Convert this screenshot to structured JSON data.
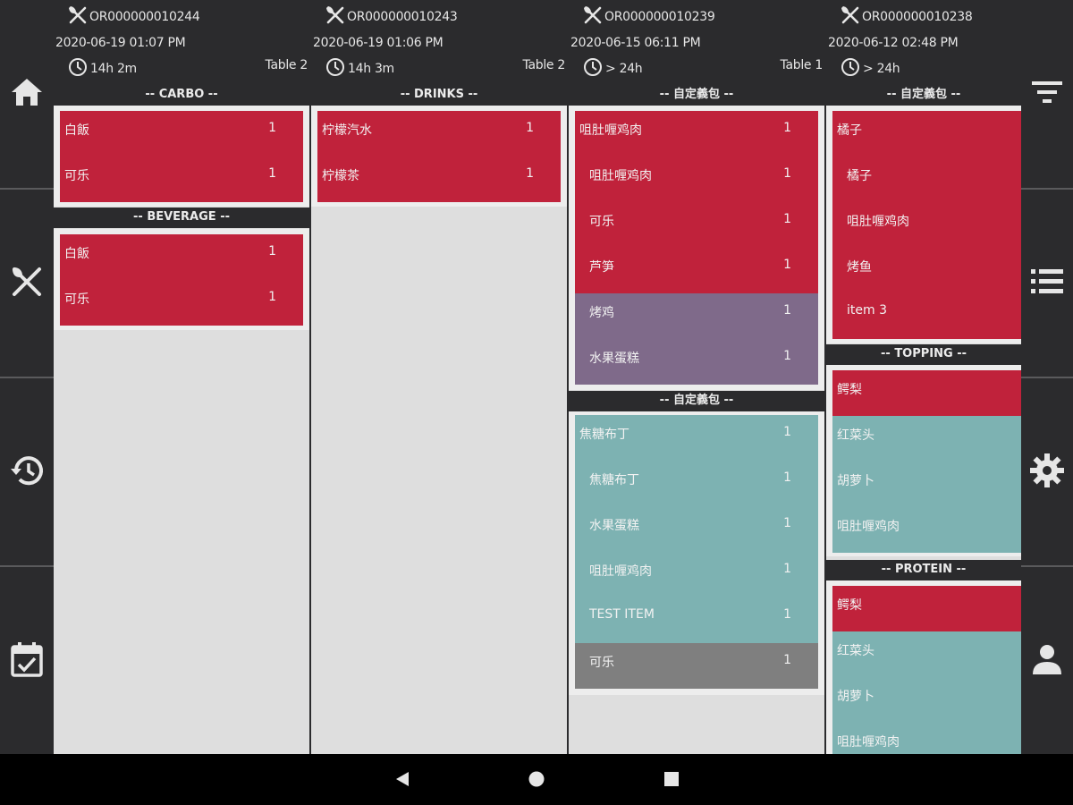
{
  "nav_left": [
    {
      "icon": "home-icon"
    },
    {
      "icon": "fork-knife-icon"
    },
    {
      "icon": "history-icon"
    },
    {
      "icon": "calendar-check-icon"
    }
  ],
  "nav_right": [
    {
      "icon": "filter-icon"
    },
    {
      "icon": "list-icon"
    },
    {
      "icon": "gear-icon"
    },
    {
      "icon": "person-icon"
    }
  ],
  "colors": {
    "background": "#2b2b2d",
    "column_bg": "#dedede",
    "item_red": "#c0223b",
    "item_purple": "#7f6a8a",
    "item_teal": "#7db2b2",
    "item_gray": "#7f7f7f"
  },
  "orders": [
    {
      "id": "OR000000010244",
      "datetime": "2020-06-19 01:07 PM",
      "elapsed": "14h 2m",
      "table": "Table 2",
      "categories": [
        {
          "name": "-- CARBO --",
          "items": [
            {
              "name": "白飯",
              "qty": "1",
              "status": "red"
            },
            {
              "name": "可乐",
              "qty": "1",
              "status": "red"
            }
          ]
        },
        {
          "name": "-- BEVERAGE --",
          "items": [
            {
              "name": "白飯",
              "qty": "1",
              "status": "red"
            },
            {
              "name": "可乐",
              "qty": "1",
              "status": "red"
            }
          ]
        }
      ]
    },
    {
      "id": "OR000000010243",
      "datetime": "2020-06-19 01:06 PM",
      "elapsed": "14h 3m",
      "table": "Table 2",
      "categories": [
        {
          "name": "-- DRINKS --",
          "items": [
            {
              "name": "柠檬汽水",
              "qty": "1",
              "status": "red"
            },
            {
              "name": "柠檬茶",
              "qty": "1",
              "status": "red"
            }
          ]
        }
      ]
    },
    {
      "id": "OR000000010239",
      "datetime": "2020-06-15 06:11 PM",
      "elapsed": "> 24h",
      "table": "Table 1",
      "categories": [
        {
          "name": "-- 自定義包 --",
          "items": [
            {
              "name": "咀肚喱鸡肉",
              "qty": "1",
              "status": "red"
            },
            {
              "name": "咀肚喱鸡肉",
              "qty": "1",
              "status": "red",
              "sub": true
            },
            {
              "name": "可乐",
              "qty": "1",
              "status": "red",
              "sub": true
            },
            {
              "name": "芦笋",
              "qty": "1",
              "status": "red",
              "sub": true
            },
            {
              "name": "烤鸡",
              "qty": "1",
              "status": "purple",
              "sub": true
            },
            {
              "name": "水果蛋糕",
              "qty": "1",
              "status": "purple",
              "sub": true
            }
          ]
        },
        {
          "name": "-- 自定義包 --",
          "items": [
            {
              "name": "焦糖布丁",
              "qty": "1",
              "status": "teal"
            },
            {
              "name": "焦糖布丁",
              "qty": "1",
              "status": "teal",
              "sub": true
            },
            {
              "name": "水果蛋糕",
              "qty": "1",
              "status": "teal",
              "sub": true
            },
            {
              "name": "咀肚喱鸡肉",
              "qty": "1",
              "status": "teal",
              "sub": true
            },
            {
              "name": "TEST ITEM",
              "qty": "1",
              "status": "teal",
              "sub": true
            },
            {
              "name": "可乐",
              "qty": "1",
              "status": "gray",
              "sub": true
            }
          ]
        }
      ]
    },
    {
      "id": "OR000000010238",
      "datetime": "2020-06-12 02:48 PM",
      "elapsed": "> 24h",
      "table": "",
      "categories": [
        {
          "name": "-- 自定義包 --",
          "items": [
            {
              "name": "橘子",
              "qty": "",
              "status": "red"
            },
            {
              "name": "橘子",
              "qty": "",
              "status": "red",
              "sub": true
            },
            {
              "name": "咀肚喱鸡肉",
              "qty": "",
              "status": "red",
              "sub": true
            },
            {
              "name": "烤鱼",
              "qty": "",
              "status": "red",
              "sub": true
            },
            {
              "name": "item 3",
              "qty": "",
              "status": "red",
              "sub": true
            }
          ]
        },
        {
          "name": "-- TOPPING --",
          "items": [
            {
              "name": "鳄梨",
              "qty": "",
              "status": "red"
            },
            {
              "name": "红菜头",
              "qty": "",
              "status": "teal"
            },
            {
              "name": "胡萝卜",
              "qty": "",
              "status": "teal"
            },
            {
              "name": "咀肚喱鸡肉",
              "qty": "",
              "status": "teal"
            }
          ]
        },
        {
          "name": "-- PROTEIN --",
          "items": [
            {
              "name": "鳄梨",
              "qty": "",
              "status": "red"
            },
            {
              "name": "红菜头",
              "qty": "",
              "status": "teal"
            },
            {
              "name": "胡萝卜",
              "qty": "",
              "status": "teal"
            },
            {
              "name": "咀肚喱鸡肉",
              "qty": "",
              "status": "teal"
            }
          ]
        }
      ]
    }
  ],
  "system_nav": [
    {
      "icon": "back-icon"
    },
    {
      "icon": "home-circle-icon"
    },
    {
      "icon": "recents-icon"
    }
  ]
}
